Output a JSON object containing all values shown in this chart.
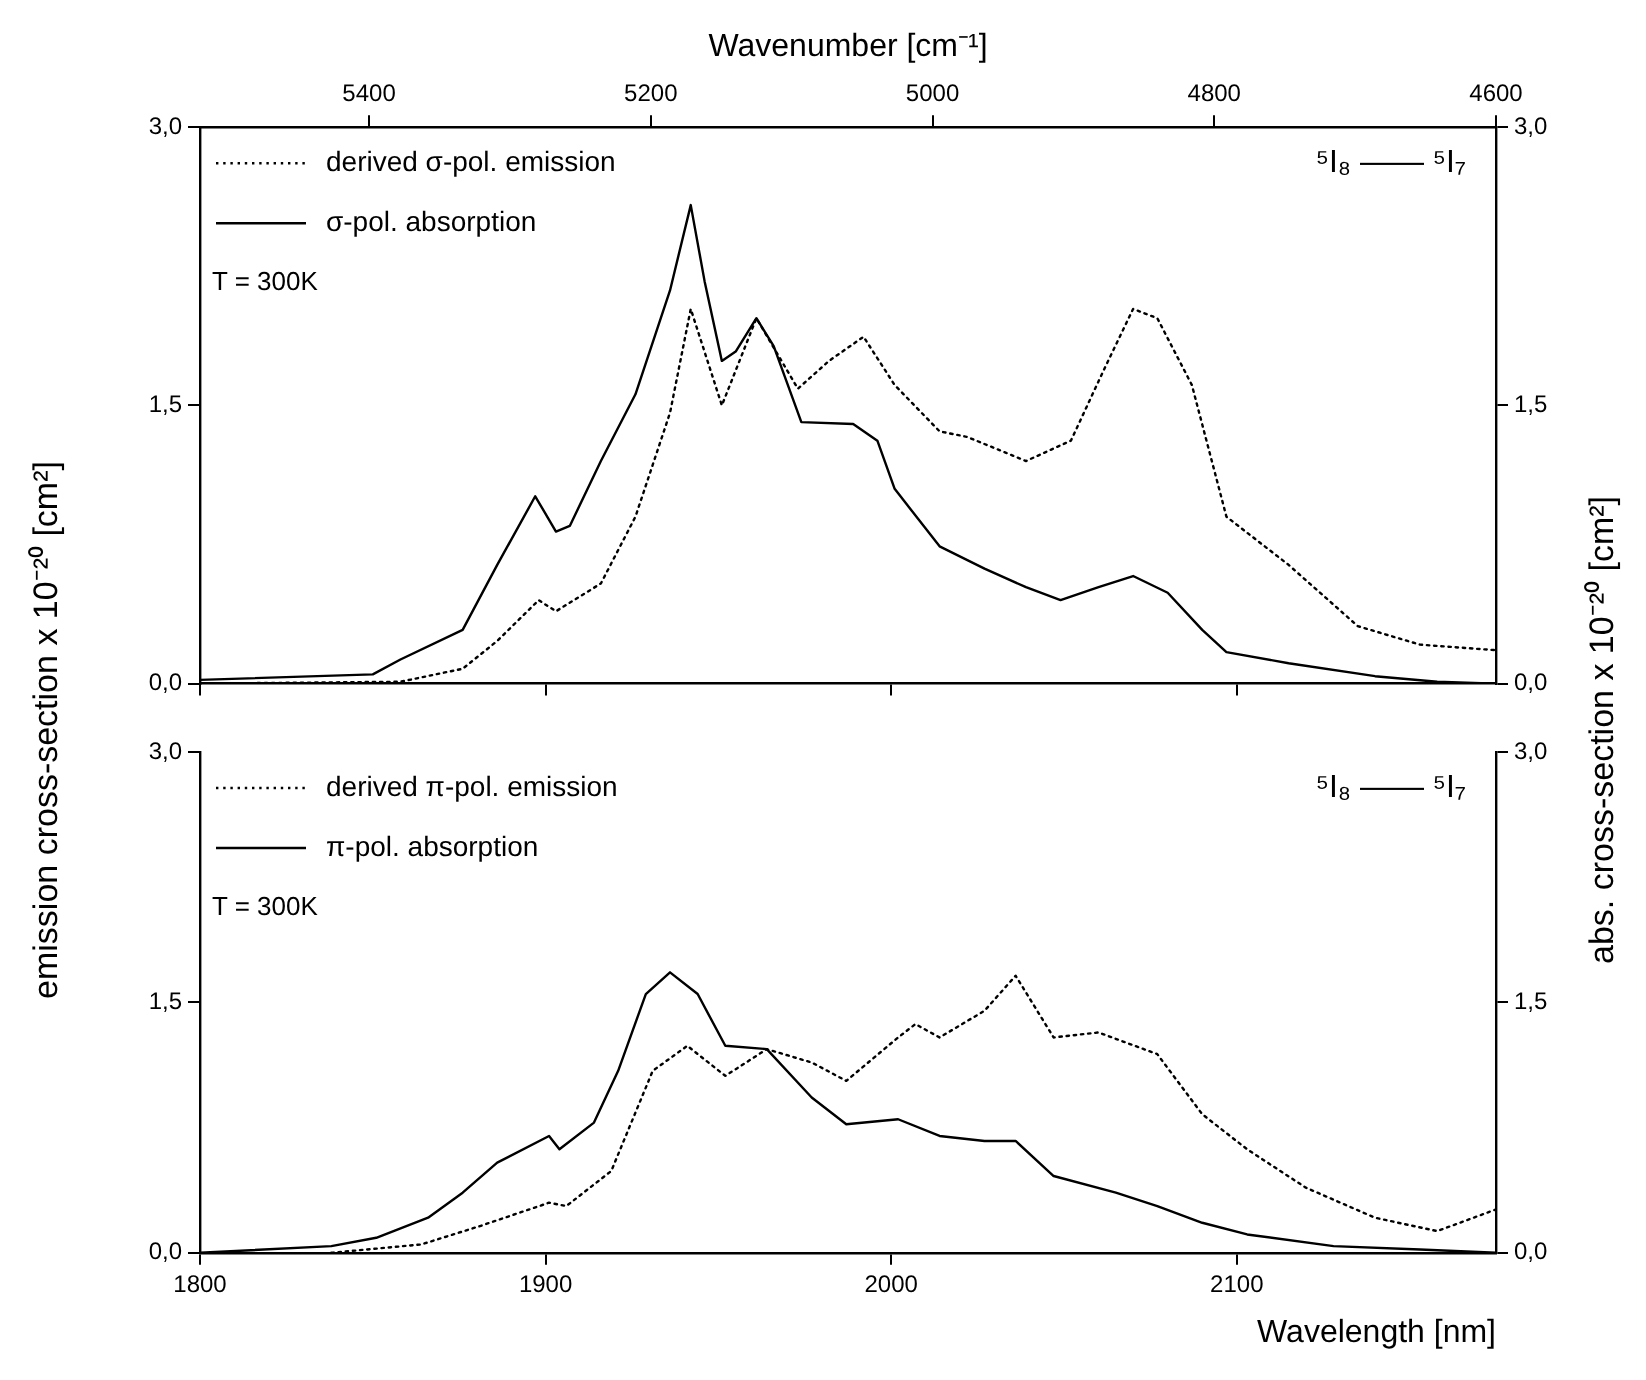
{
  "chart_data": [
    {
      "type": "line",
      "x2label": "Wavenumber [cm⁻¹]",
      "ylabel": "emission cross-section x 10⁻²⁰ [cm²]",
      "y2label": "abs. cross-section x 10⁻²⁰ [cm²]",
      "xlim": [
        1800,
        2175
      ],
      "xticks": [
        {
          "value": 1800,
          "label": null
        },
        {
          "value": 1900,
          "label": null
        },
        {
          "value": 2000,
          "label": null
        },
        {
          "value": 2100,
          "label": null
        }
      ],
      "x2lim": [
        5520,
        4600
      ],
      "x2ticks": [
        5400,
        5200,
        5000,
        4800,
        4600
      ],
      "ylim": [
        0,
        3
      ],
      "yticks": [
        {
          "value": 0,
          "label": "0,0"
        },
        {
          "value": 1.5,
          "label": "1,5"
        },
        {
          "value": 3,
          "label": "3,0"
        }
      ],
      "y2lim": [
        0,
        3
      ],
      "y2ticks": [
        {
          "value": 0,
          "label": "0,0"
        },
        {
          "value": 1.5,
          "label": "1,5"
        },
        {
          "value": 3,
          "label": "3,0"
        }
      ],
      "tick_labels": "y",
      "marker": "none",
      "legend": "top left",
      "grid": false,
      "annotations": [
        "T = 300K",
        "⁵I₈ —— ⁵I₇"
      ],
      "series": [
        {
          "name": "derived σ-pol. emission",
          "color": "#000000",
          "line_style": "dotted",
          "x": [
            1800,
            1858,
            1876,
            1886,
            1898,
            1903,
            1916,
            1926,
            1936,
            1942,
            1951,
            1961,
            1973,
            1982,
            1992,
            2001,
            2014,
            2022,
            2039,
            2052,
            2062,
            2070,
            2077,
            2087,
            2097,
            2115,
            2135,
            2153,
            2175
          ],
          "values": [
            0,
            0.01,
            0.08,
            0.23,
            0.45,
            0.39,
            0.54,
            0.9,
            1.46,
            2.02,
            1.5,
            1.97,
            1.59,
            1.74,
            1.87,
            1.61,
            1.36,
            1.33,
            1.2,
            1.31,
            1.71,
            2.02,
            1.97,
            1.61,
            0.9,
            0.64,
            0.31,
            0.21,
            0.18
          ]
        },
        {
          "name": "σ-pol. absorption",
          "color": "#000000",
          "line_style": "solid",
          "axis": "y2",
          "x": [
            1800,
            1850,
            1858,
            1876,
            1886,
            1897,
            1903,
            1907,
            1916,
            1926,
            1936,
            1942,
            1946,
            1951,
            1955,
            1961,
            1966,
            1974,
            1989,
            1996,
            2001,
            2014,
            2027,
            2039,
            2049,
            2060,
            2070,
            2080,
            2090,
            2097,
            2115,
            2140,
            2158,
            2175
          ],
          "values": [
            0.02,
            0.05,
            0.13,
            0.29,
            0.64,
            1.01,
            0.82,
            0.85,
            1.2,
            1.56,
            2.12,
            2.58,
            2.17,
            1.74,
            1.79,
            1.97,
            1.82,
            1.41,
            1.4,
            1.31,
            1.05,
            0.74,
            0.62,
            0.52,
            0.45,
            0.52,
            0.58,
            0.49,
            0.29,
            0.17,
            0.11,
            0.04,
            0.01,
            0
          ]
        }
      ]
    },
    {
      "type": "line",
      "xlabel": "Wavelength [nm]",
      "xlim": [
        1800,
        2175
      ],
      "xticks": [
        1800,
        1900,
        2000,
        2100
      ],
      "ylim": [
        0,
        3
      ],
      "yticks": [
        {
          "value": 0,
          "label": "0,0"
        },
        {
          "value": 1.5,
          "label": "1,5"
        },
        {
          "value": 3,
          "label": "3,0"
        }
      ],
      "y2lim": [
        0,
        3
      ],
      "y2ticks": [
        {
          "value": 0,
          "label": "0,0"
        },
        {
          "value": 1.5,
          "label": "1,5"
        },
        {
          "value": 3,
          "label": "3,0"
        }
      ],
      "marker": "none",
      "legend": "top left",
      "grid": false,
      "annotations": [
        "T = 300K",
        "⁵I₈ —— ⁵I₇"
      ],
      "series": [
        {
          "name": "derived π-pol. emission",
          "color": "#000000",
          "line_style": "dotted",
          "x": [
            1838,
            1864,
            1881,
            1901,
            1906,
            1919,
            1931,
            1941,
            1952,
            1964,
            1977,
            1987,
            2002,
            2007,
            2014,
            2027,
            2036,
            2047,
            2060,
            2077,
            2090,
            2103,
            2120,
            2140,
            2158,
            2175
          ],
          "values": [
            0,
            0.05,
            0.16,
            0.3,
            0.28,
            0.49,
            1.09,
            1.24,
            1.06,
            1.22,
            1.14,
            1.03,
            1.29,
            1.37,
            1.29,
            1.45,
            1.66,
            1.29,
            1.32,
            1.19,
            0.83,
            0.62,
            0.39,
            0.21,
            0.13,
            0.26
          ]
        },
        {
          "name": "π-pol. absorption",
          "color": "#000000",
          "line_style": "solid",
          "axis": "y2",
          "x": [
            1800,
            1838,
            1851,
            1866,
            1876,
            1886,
            1901,
            1904,
            1914,
            1921,
            1929,
            1936,
            1944,
            1952,
            1964,
            1977,
            1987,
            2002,
            2014,
            2027,
            2036,
            2047,
            2065,
            2077,
            2090,
            2103,
            2128,
            2153,
            2175
          ],
          "values": [
            0,
            0.04,
            0.09,
            0.21,
            0.36,
            0.54,
            0.7,
            0.62,
            0.78,
            1.09,
            1.55,
            1.68,
            1.55,
            1.24,
            1.22,
            0.93,
            0.77,
            0.8,
            0.7,
            0.67,
            0.67,
            0.46,
            0.36,
            0.28,
            0.18,
            0.11,
            0.04,
            0.02,
            0
          ]
        }
      ]
    }
  ]
}
